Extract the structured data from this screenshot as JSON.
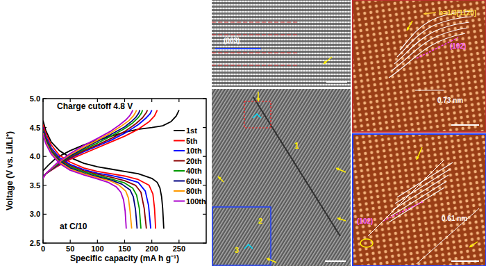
{
  "chart_data": {
    "type": "line",
    "title": "Charge cutoff 4.8 V",
    "subtitle": "at C/10",
    "x_label": "Specific capacity (mA h g⁻¹)",
    "y_label": "Voltage (V vs. Li/Li⁺)",
    "xlim": [
      0,
      300
    ],
    "ylim": [
      2.5,
      5.0
    ],
    "xticks": [
      0,
      50,
      100,
      150,
      200,
      250
    ],
    "yticks": [
      2.5,
      {
        "value": 3,
        "label": "3.0"
      },
      3.5,
      {
        "value": 4,
        "label": "4.0"
      },
      4.5,
      {
        "value": 5,
        "label": "5.0"
      }
    ],
    "grid": false,
    "legend": "right",
    "series": [
      {
        "name": "1st",
        "color": "#000000",
        "x": [
          0,
          10,
          25,
          50,
          75,
          100,
          125,
          150,
          175,
          200,
          220,
          235,
          245,
          250,
          null,
          0,
          5,
          15,
          30,
          50,
          75,
          100,
          125,
          150,
          175,
          200,
          210,
          215,
          218,
          220,
          222
        ],
        "values": [
          3.75,
          3.85,
          3.98,
          4.1,
          4.2,
          4.28,
          4.35,
          4.42,
          4.47,
          4.5,
          4.53,
          4.6,
          4.7,
          4.8,
          null,
          4.62,
          4.45,
          4.25,
          4.1,
          3.98,
          3.88,
          3.82,
          3.78,
          3.74,
          3.7,
          3.62,
          3.55,
          3.45,
          3.3,
          3.1,
          2.75
        ]
      },
      {
        "name": "5th",
        "color": "#ff0000",
        "x": [
          0,
          5,
          25,
          50,
          75,
          100,
          125,
          150,
          175,
          195,
          205,
          210,
          null,
          0,
          5,
          15,
          30,
          50,
          75,
          100,
          125,
          150,
          175,
          195,
          202,
          205,
          207
        ],
        "values": [
          3.65,
          3.7,
          3.82,
          3.95,
          4.05,
          4.15,
          4.25,
          4.35,
          4.47,
          4.6,
          4.7,
          4.8,
          null,
          4.55,
          4.4,
          4.2,
          4.02,
          3.9,
          3.8,
          3.74,
          3.7,
          3.66,
          3.6,
          3.5,
          3.35,
          3.1,
          2.75
        ]
      },
      {
        "name": "10th",
        "color": "#0000ff",
        "x": [
          0,
          5,
          25,
          50,
          75,
          100,
          125,
          150,
          175,
          190,
          197,
          200,
          null,
          0,
          5,
          15,
          30,
          50,
          75,
          100,
          125,
          150,
          175,
          188,
          194,
          198
        ],
        "values": [
          3.65,
          3.7,
          3.83,
          3.97,
          4.08,
          4.18,
          4.28,
          4.4,
          4.55,
          4.67,
          4.74,
          4.8,
          null,
          4.5,
          4.35,
          4.15,
          3.98,
          3.86,
          3.77,
          3.71,
          3.67,
          3.62,
          3.55,
          3.4,
          3.15,
          2.75
        ]
      },
      {
        "name": "20th",
        "color": "#8b0000",
        "x": [
          0,
          5,
          25,
          50,
          75,
          100,
          125,
          150,
          170,
          183,
          190,
          192,
          null,
          0,
          5,
          15,
          30,
          50,
          75,
          100,
          125,
          150,
          170,
          180,
          186,
          190
        ],
        "values": [
          3.64,
          3.7,
          3.84,
          3.98,
          4.1,
          4.2,
          4.31,
          4.43,
          4.56,
          4.67,
          4.76,
          4.8,
          null,
          4.48,
          4.32,
          4.12,
          3.95,
          3.84,
          3.75,
          3.69,
          3.64,
          3.58,
          3.5,
          3.38,
          3.1,
          2.75
        ]
      },
      {
        "name": "40th",
        "color": "#009900",
        "x": [
          0,
          5,
          25,
          50,
          75,
          100,
          125,
          150,
          165,
          175,
          181,
          183,
          null,
          0,
          5,
          15,
          30,
          50,
          75,
          100,
          125,
          150,
          165,
          172,
          177,
          180
        ],
        "values": [
          3.63,
          3.7,
          3.85,
          4.0,
          4.12,
          4.23,
          4.35,
          4.48,
          4.58,
          4.67,
          4.75,
          4.8,
          null,
          4.45,
          4.3,
          4.1,
          3.93,
          3.82,
          3.73,
          3.67,
          3.61,
          3.54,
          3.45,
          3.33,
          3.1,
          2.75
        ]
      },
      {
        "name": "60th",
        "color": "#000080",
        "x": [
          0,
          5,
          25,
          50,
          75,
          100,
          125,
          150,
          162,
          171,
          176,
          178,
          null,
          0,
          5,
          15,
          30,
          50,
          75,
          100,
          125,
          145,
          160,
          166,
          170,
          173
        ],
        "values": [
          3.63,
          3.7,
          3.86,
          4.01,
          4.14,
          4.26,
          4.38,
          4.51,
          4.6,
          4.68,
          4.75,
          4.8,
          null,
          4.43,
          4.28,
          4.08,
          3.92,
          3.8,
          3.71,
          3.65,
          3.59,
          3.52,
          3.42,
          3.3,
          3.08,
          2.75
        ]
      },
      {
        "name": "80th",
        "color": "#ff9900",
        "x": [
          0,
          5,
          25,
          50,
          75,
          100,
          125,
          145,
          158,
          166,
          170,
          172,
          null,
          0,
          5,
          15,
          30,
          50,
          75,
          100,
          125,
          140,
          152,
          157,
          160,
          163
        ],
        "values": [
          3.62,
          3.7,
          3.87,
          4.03,
          4.16,
          4.28,
          4.41,
          4.53,
          4.62,
          4.7,
          4.76,
          4.8,
          null,
          4.4,
          4.25,
          4.06,
          3.9,
          3.78,
          3.7,
          3.63,
          3.57,
          3.5,
          3.4,
          3.28,
          3.05,
          2.75
        ]
      },
      {
        "name": "100th",
        "color": "#aa00cc",
        "x": [
          0,
          5,
          25,
          50,
          75,
          100,
          125,
          140,
          152,
          159,
          163,
          165,
          null,
          0,
          5,
          15,
          30,
          50,
          75,
          100,
          120,
          135,
          143,
          148,
          151,
          153
        ],
        "values": [
          3.62,
          3.7,
          3.88,
          4.05,
          4.19,
          4.31,
          4.44,
          4.54,
          4.63,
          4.7,
          4.76,
          4.8,
          null,
          4.38,
          4.22,
          4.04,
          3.88,
          3.76,
          3.68,
          3.61,
          3.55,
          3.47,
          3.38,
          3.25,
          3.05,
          2.75
        ]
      }
    ]
  },
  "panels": [
    {
      "texts": [
        "(003)"
      ]
    },
    {
      "texts": [
        "1",
        "2",
        "3"
      ]
    },
    {
      "texts": [
        "b=1/3[112̄0]",
        "(102)",
        "0.73 nm"
      ]
    },
    {
      "texts": [
        "(102)",
        "0.61 nm"
      ]
    }
  ]
}
